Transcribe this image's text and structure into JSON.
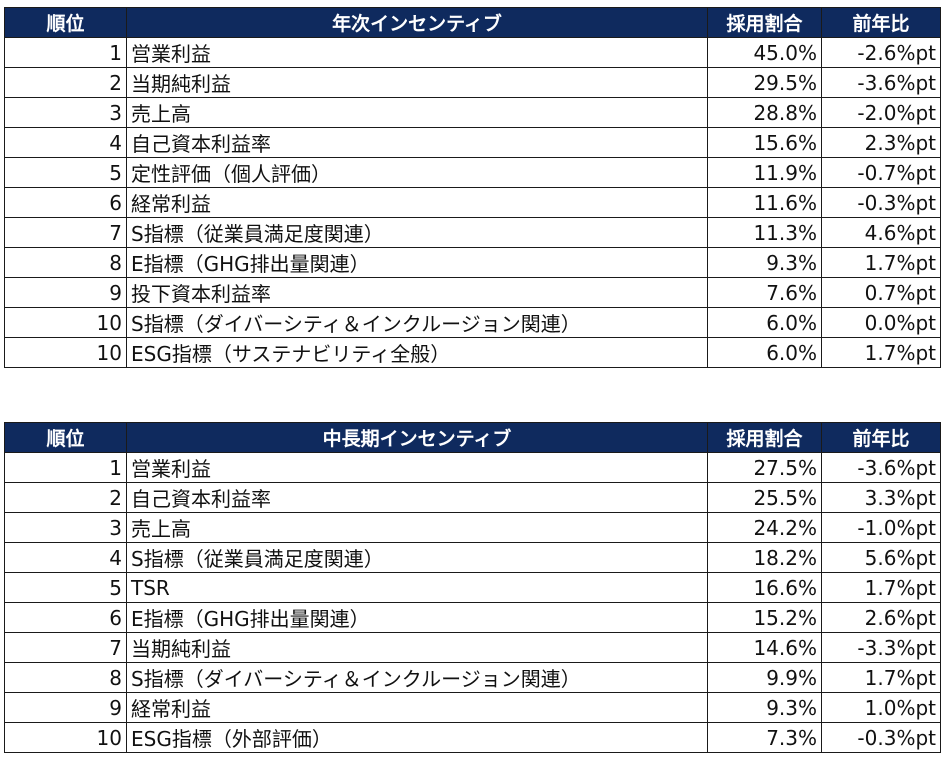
{
  "annual": {
    "headers": [
      "順位",
      "年次インセンティブ",
      "採用割合",
      "前年比"
    ],
    "rows": [
      {
        "rank": "1",
        "name": "営業利益",
        "rate": "45.0%",
        "change": "-2.6%pt"
      },
      {
        "rank": "2",
        "name": "当期純利益",
        "rate": "29.5%",
        "change": "-3.6%pt"
      },
      {
        "rank": "3",
        "name": "売上高",
        "rate": "28.8%",
        "change": "-2.0%pt"
      },
      {
        "rank": "4",
        "name": "自己資本利益率",
        "rate": "15.6%",
        "change": "2.3%pt"
      },
      {
        "rank": "5",
        "name": "定性評価（個人評価）",
        "rate": "11.9%",
        "change": "-0.7%pt"
      },
      {
        "rank": "6",
        "name": "経常利益",
        "rate": "11.6%",
        "change": "-0.3%pt"
      },
      {
        "rank": "7",
        "name": "S指標（従業員満足度関連）",
        "rate": "11.3%",
        "change": "4.6%pt"
      },
      {
        "rank": "8",
        "name": "E指標（GHG排出量関連）",
        "rate": "9.3%",
        "change": "1.7%pt"
      },
      {
        "rank": "9",
        "name": "投下資本利益率",
        "rate": "7.6%",
        "change": "0.7%pt"
      },
      {
        "rank": "10",
        "name": "S指標（ダイバーシティ＆インクルージョン関連）",
        "rate": "6.0%",
        "change": "0.0%pt"
      },
      {
        "rank": "10",
        "name": "ESG指標（サステナビリティ全般）",
        "rate": "6.0%",
        "change": "1.7%pt"
      }
    ]
  },
  "midterm": {
    "headers": [
      "順位",
      "中長期インセンティブ",
      "採用割合",
      "前年比"
    ],
    "rows": [
      {
        "rank": "1",
        "name": "営業利益",
        "rate": "27.5%",
        "change": "-3.6%pt"
      },
      {
        "rank": "2",
        "name": "自己資本利益率",
        "rate": "25.5%",
        "change": "3.3%pt"
      },
      {
        "rank": "3",
        "name": "売上高",
        "rate": "24.2%",
        "change": "-1.0%pt"
      },
      {
        "rank": "4",
        "name": "S指標（従業員満足度関連）",
        "rate": "18.2%",
        "change": "5.6%pt"
      },
      {
        "rank": "5",
        "name": "TSR",
        "rate": "16.6%",
        "change": "1.7%pt"
      },
      {
        "rank": "6",
        "name": "E指標（GHG排出量関連）",
        "rate": "15.2%",
        "change": "2.6%pt"
      },
      {
        "rank": "7",
        "name": "当期純利益",
        "rate": "14.6%",
        "change": "-3.3%pt"
      },
      {
        "rank": "8",
        "name": "S指標（ダイバーシティ＆インクルージョン関連）",
        "rate": "9.9%",
        "change": "1.7%pt"
      },
      {
        "rank": "9",
        "name": "経常利益",
        "rate": "9.3%",
        "change": "1.0%pt"
      },
      {
        "rank": "10",
        "name": "ESG指標（外部評価）",
        "rate": "7.3%",
        "change": "-0.3%pt"
      }
    ]
  },
  "colors": {
    "header_bg": "#0f2a5e",
    "header_text": "#ffffff",
    "border": "#1a1a1a"
  }
}
